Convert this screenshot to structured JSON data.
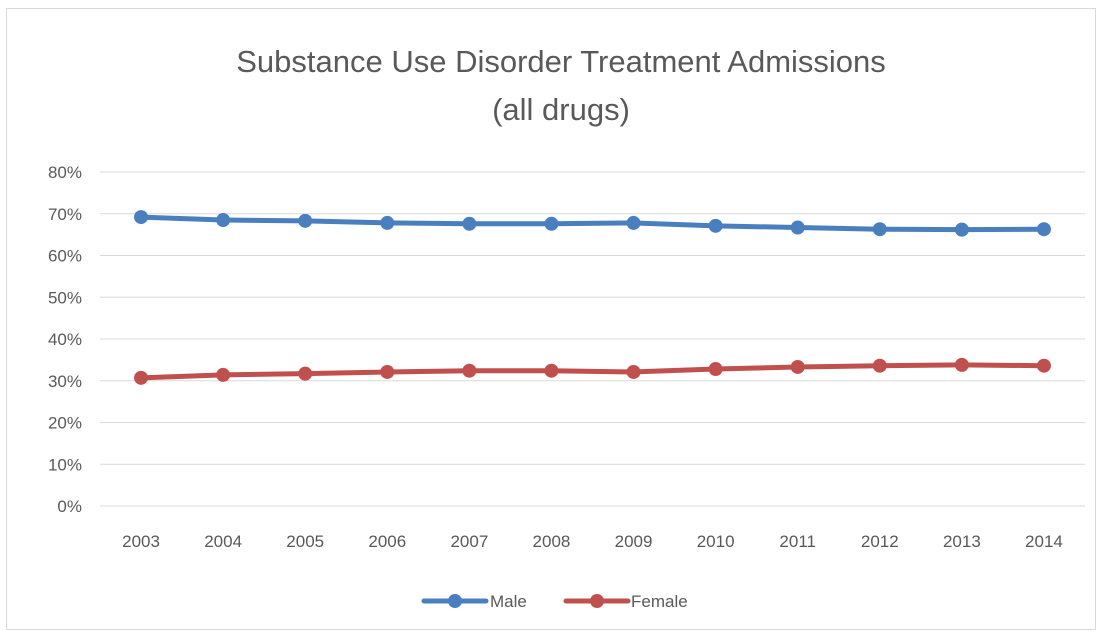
{
  "chart_data": {
    "type": "line",
    "title": [
      "Substance Use Disorder Treatment Admissions",
      "(all drugs)"
    ],
    "categories": [
      "2003",
      "2004",
      "2005",
      "2006",
      "2007",
      "2008",
      "2009",
      "2010",
      "2011",
      "2012",
      "2013",
      "2014"
    ],
    "y_ticks": [
      "0%",
      "10%",
      "20%",
      "30%",
      "40%",
      "50%",
      "60%",
      "70%",
      "80%"
    ],
    "ylim": [
      0,
      80
    ],
    "y_unit": "%",
    "grid": true,
    "legend_position": "bottom",
    "series": [
      {
        "name": "Male",
        "color": "#4a7fbf",
        "values": [
          69.2,
          68.5,
          68.3,
          67.8,
          67.6,
          67.6,
          67.8,
          67.1,
          66.7,
          66.3,
          66.2,
          66.3
        ]
      },
      {
        "name": "Female",
        "color": "#c0504d",
        "values": [
          30.7,
          31.4,
          31.7,
          32.1,
          32.4,
          32.4,
          32.1,
          32.8,
          33.3,
          33.6,
          33.8,
          33.6
        ]
      }
    ]
  }
}
